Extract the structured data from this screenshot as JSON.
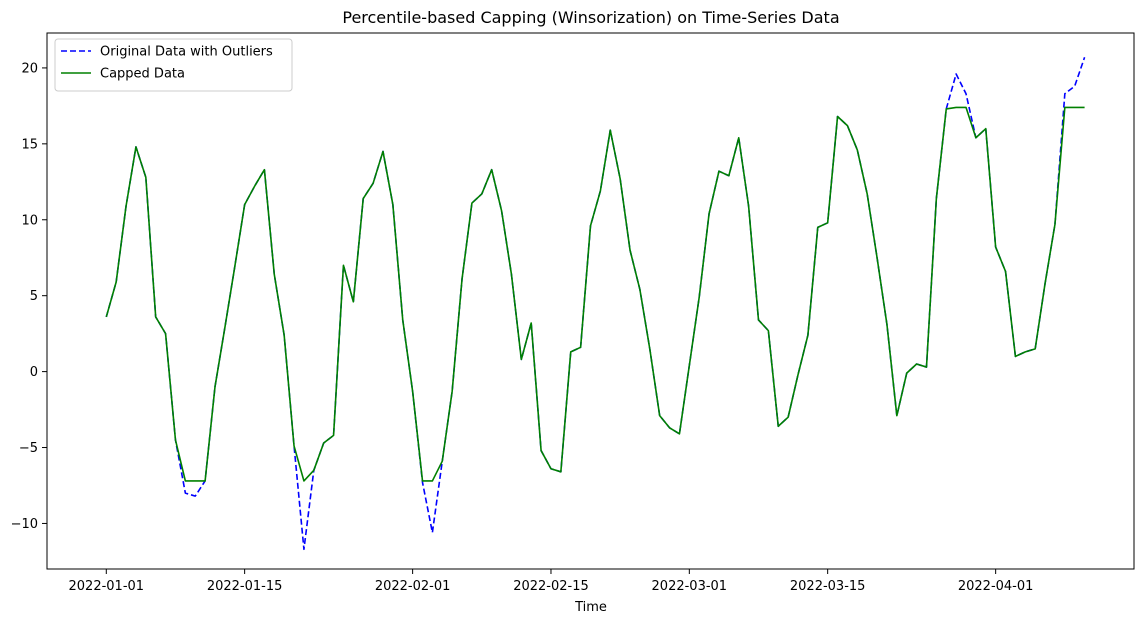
{
  "chart_data": {
    "type": "line",
    "title": "Percentile-based Capping (Winsorization) on Time-Series Data",
    "xlabel": "Time",
    "ylabel": "",
    "x_start": "2022-01-01",
    "x_end": "2022-04-10",
    "xlim": [
      "2021-12-26",
      "2022-04-15"
    ],
    "ylim": [
      -13.0,
      22.3
    ],
    "x_ticks": [
      "2022-01-01",
      "2022-01-15",
      "2022-02-01",
      "2022-02-15",
      "2022-03-01",
      "2022-03-15",
      "2022-04-01"
    ],
    "y_ticks": [
      -10,
      -5,
      0,
      5,
      10,
      15,
      20
    ],
    "grid": false,
    "legend_position": "top-left",
    "series": [
      {
        "name": "Original Data with Outliers",
        "color": "#0000ff",
        "style": "dashed",
        "values": [
          3.6,
          5.9,
          10.9,
          14.8,
          12.8,
          3.6,
          2.5,
          -4.5,
          -8.0,
          -8.2,
          -7.2,
          -1.0,
          2.9,
          6.9,
          11.0,
          12.2,
          13.3,
          6.4,
          2.4,
          -4.9,
          -11.7,
          -6.5,
          -4.7,
          -4.2,
          7.0,
          4.6,
          11.4,
          12.4,
          14.5,
          11.0,
          3.4,
          -1.3,
          -7.3,
          -10.6,
          -5.9,
          -1.3,
          6.1,
          11.1,
          11.7,
          13.3,
          10.6,
          6.4,
          0.8,
          3.2,
          -5.2,
          -6.4,
          -6.6,
          1.3,
          1.6,
          9.6,
          11.9,
          15.9,
          12.7,
          8.0,
          5.4,
          1.5,
          -2.9,
          -3.7,
          -4.1,
          0.4,
          4.9,
          10.4,
          13.2,
          12.9,
          15.4,
          10.9,
          3.4,
          2.7,
          -3.6,
          -3.0,
          -0.2,
          2.4,
          9.5,
          9.8,
          16.8,
          16.2,
          14.6,
          11.7,
          7.5,
          3.1,
          -2.9,
          -0.1,
          0.5,
          0.3,
          11.4,
          17.3,
          19.6,
          18.3,
          15.4,
          16.0,
          8.2,
          6.6,
          1.0,
          1.3,
          1.5,
          5.8,
          9.7,
          18.3,
          18.8,
          20.7
        ]
      },
      {
        "name": "Capped Data",
        "color": "#008000",
        "style": "solid",
        "values": [
          3.6,
          5.9,
          10.9,
          14.8,
          12.8,
          3.6,
          2.5,
          -4.5,
          -7.2,
          -7.2,
          -7.2,
          -1.0,
          2.9,
          6.9,
          11.0,
          12.2,
          13.3,
          6.4,
          2.4,
          -4.9,
          -7.2,
          -6.5,
          -4.7,
          -4.2,
          7.0,
          4.6,
          11.4,
          12.4,
          14.5,
          11.0,
          3.4,
          -1.3,
          -7.2,
          -7.2,
          -5.9,
          -1.3,
          6.1,
          11.1,
          11.7,
          13.3,
          10.6,
          6.4,
          0.8,
          3.2,
          -5.2,
          -6.4,
          -6.6,
          1.3,
          1.6,
          9.6,
          11.9,
          15.9,
          12.7,
          8.0,
          5.4,
          1.5,
          -2.9,
          -3.7,
          -4.1,
          0.4,
          4.9,
          10.4,
          13.2,
          12.9,
          15.4,
          10.9,
          3.4,
          2.7,
          -3.6,
          -3.0,
          -0.2,
          2.4,
          9.5,
          9.8,
          16.8,
          16.2,
          14.6,
          11.7,
          7.5,
          3.1,
          -2.9,
          -0.1,
          0.5,
          0.3,
          11.4,
          17.3,
          17.4,
          17.4,
          15.4,
          16.0,
          8.2,
          6.6,
          1.0,
          1.3,
          1.5,
          5.8,
          9.7,
          17.4,
          17.4,
          17.4
        ]
      }
    ]
  }
}
